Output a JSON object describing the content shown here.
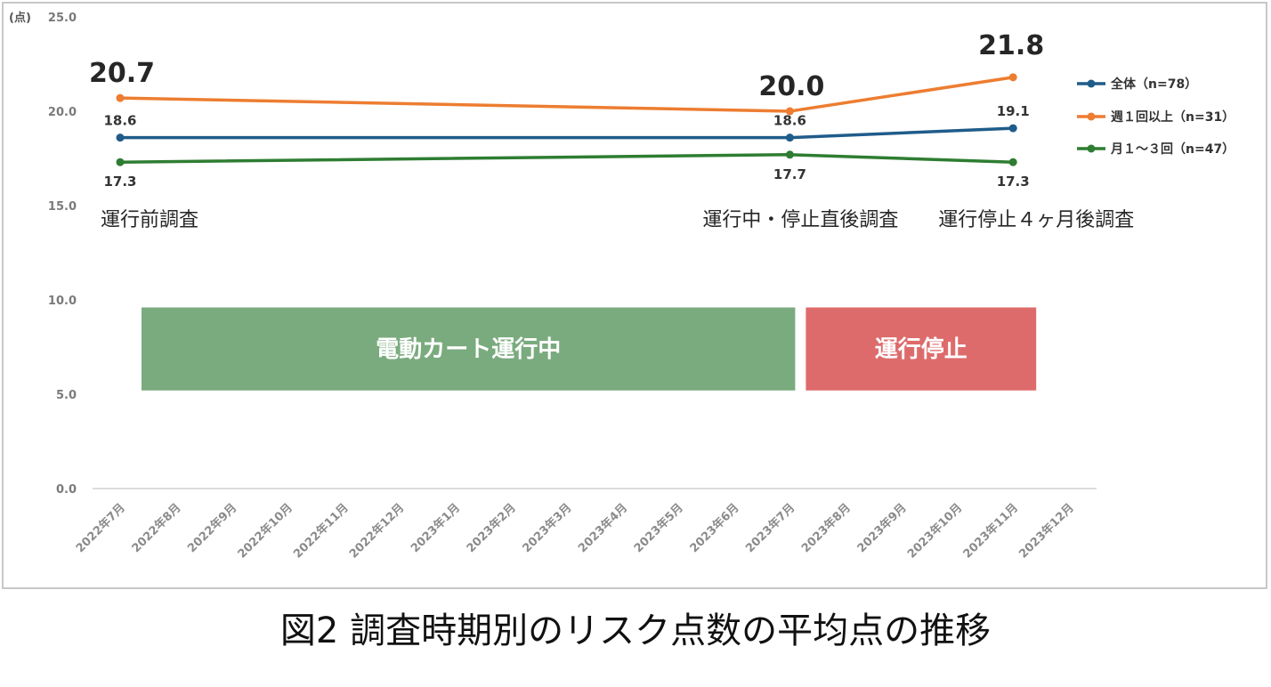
{
  "caption": "図2 調査時期別のリスク点数の平均点の推移",
  "chart_data": {
    "type": "line",
    "unit_label": "(点)",
    "ylim": [
      0,
      25
    ],
    "y_ticks": [
      "0.0",
      "5.0",
      "10.0",
      "15.0",
      "20.0",
      "25.0"
    ],
    "y_tick_values": [
      0,
      5,
      10,
      15,
      20,
      25
    ],
    "x_categories": [
      "2022年7月",
      "2022年8月",
      "2022年9月",
      "2022年10月",
      "2022年11月",
      "2022年12月",
      "2023年1月",
      "2023年2月",
      "2023年3月",
      "2023年4月",
      "2023年5月",
      "2023年6月",
      "2023年7月",
      "2023年8月",
      "2023年9月",
      "2023年10月",
      "2023年11月",
      "2023年12月"
    ],
    "survey_points": [
      "2022年7月",
      "2023年7月",
      "2023年11月"
    ],
    "phase_labels": [
      "運行前調査",
      "運行中・停止直後調査",
      "運行停止４ヶ月後調査"
    ],
    "series": [
      {
        "name": "全体（n=78）",
        "color": "#1f5c8a",
        "values": [
          18.6,
          18.6,
          19.1
        ],
        "labels": [
          "18.6",
          "18.6",
          "19.1"
        ],
        "label_size": "small"
      },
      {
        "name": "週１回以上（n=31）",
        "color": "#ed7d31",
        "values": [
          20.7,
          20.0,
          21.8
        ],
        "labels": [
          "20.7",
          "20.0",
          "21.8"
        ],
        "label_size": "big"
      },
      {
        "name": "月１～３回（n=47）",
        "color": "#2e7d32",
        "values": [
          17.3,
          17.7,
          17.3
        ],
        "labels": [
          "17.3",
          "17.7",
          "17.3"
        ],
        "label_size": "small"
      }
    ],
    "bands": [
      {
        "label": "電動カート運行中",
        "from": "2022年7月",
        "to": "2023年7月",
        "color": "#7aab7e"
      },
      {
        "label": "運行停止",
        "from": "2023年7月",
        "to": "2023年11月",
        "color": "#de6b6b"
      }
    ],
    "legend_position": "right"
  }
}
